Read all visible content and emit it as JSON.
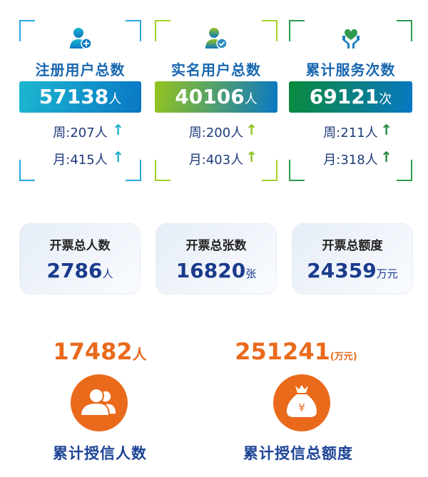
{
  "top_stats": [
    {
      "icon": "user-plus-icon",
      "title": "注册用户总数",
      "value": "57138",
      "unit": "人",
      "week": "周:207人",
      "month": "月:415人",
      "color": "#29a8e0",
      "arrow": "#1bb0c8",
      "gradient": [
        "#1cb6d0",
        "#0a78c4"
      ]
    },
    {
      "icon": "user-check-icon",
      "title": "实名用户总数",
      "value": "40106",
      "unit": "人",
      "week": "周:200人",
      "month": "月:403人",
      "color": "#a6d12a",
      "arrow": "#8cc21e",
      "gradient": [
        "#95c41d",
        "#0a78c4"
      ]
    },
    {
      "icon": "heart-hands-icon",
      "title": "累计服务次数",
      "value": "69121",
      "unit": "次",
      "week": "周:211人",
      "month": "月:318人",
      "color": "#2e9a4e",
      "arrow": "#1f8a40",
      "gradient": [
        "#0a8a3c",
        "#0a78c4"
      ]
    }
  ],
  "invoice": [
    {
      "title": "开票总人数",
      "value": "2786",
      "unit": "人"
    },
    {
      "title": "开票总张数",
      "value": "16820",
      "unit": "张"
    },
    {
      "title": "开票总额度",
      "value": "24359",
      "unit": "万元"
    }
  ],
  "credit": [
    {
      "value": "17482",
      "unit": "人",
      "label": "累计授信人数",
      "icon": "users-icon"
    },
    {
      "value": "251241",
      "unit": "(万元)",
      "label": "累计授信总额度",
      "icon": "money-bag-icon"
    }
  ],
  "colors": {
    "accent_orange": "#ea6a1c",
    "title_blue": "#1867b0",
    "value_navy": "#1a3b8c"
  }
}
